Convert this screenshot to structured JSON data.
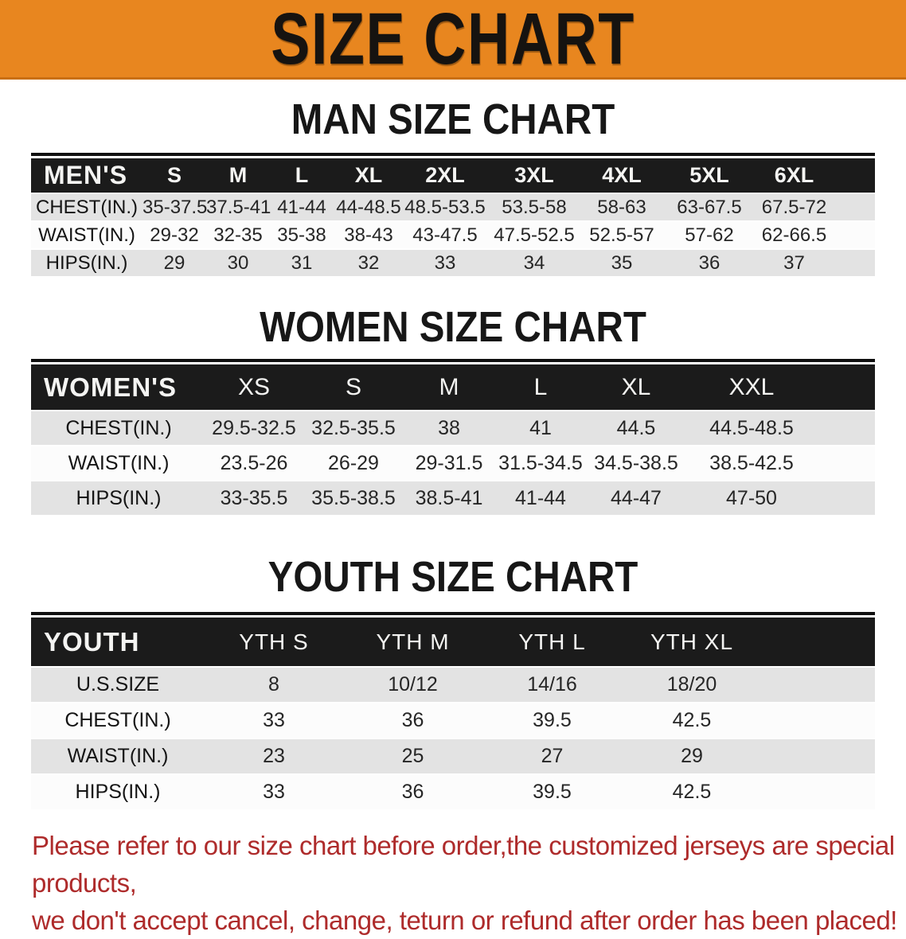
{
  "banner": {
    "title": "SIZE CHART",
    "bg_color": "#E8861F"
  },
  "sections": [
    {
      "heading": "MAN SIZE CHART",
      "table": {
        "group_label": "MEN'S",
        "columns": [
          "S",
          "M",
          "L",
          "XL",
          "2XL",
          "3XL",
          "4XL",
          "5XL",
          "6XL"
        ],
        "rows": [
          {
            "label": "CHEST(IN.)",
            "values": [
              "35-37.5",
              "37.5-41",
              "41-44",
              "44-48.5",
              "48.5-53.5",
              "53.5-58",
              "58-63",
              "63-67.5",
              "67.5-72"
            ]
          },
          {
            "label": "WAIST(IN.)",
            "values": [
              "29-32",
              "32-35",
              "35-38",
              "38-43",
              "43-47.5",
              "47.5-52.5",
              "52.5-57",
              "57-62",
              "62-66.5"
            ]
          },
          {
            "label": "HIPS(IN.)",
            "values": [
              "29",
              "30",
              "31",
              "32",
              "33",
              "34",
              "35",
              "36",
              "37"
            ]
          }
        ]
      }
    },
    {
      "heading": "WOMEN SIZE CHART",
      "table": {
        "group_label": "WOMEN'S",
        "columns": [
          "XS",
          "S",
          "M",
          "L",
          "XL",
          "XXL"
        ],
        "rows": [
          {
            "label": "CHEST(IN.)",
            "values": [
              "29.5-32.5",
              "32.5-35.5",
              "38",
              "41",
              "44.5",
              "44.5-48.5"
            ]
          },
          {
            "label": "WAIST(IN.)",
            "values": [
              "23.5-26",
              "26-29",
              "29-31.5",
              "31.5-34.5",
              "34.5-38.5",
              "38.5-42.5"
            ]
          },
          {
            "label": "HIPS(IN.)",
            "values": [
              "33-35.5",
              "35.5-38.5",
              "38.5-41",
              "41-44",
              "44-47",
              "47-50"
            ]
          }
        ]
      }
    },
    {
      "heading": "YOUTH SIZE CHART",
      "table": {
        "group_label": "YOUTH",
        "columns": [
          "YTH S",
          "YTH M",
          "YTH L",
          "YTH XL"
        ],
        "rows": [
          {
            "label": "U.S.SIZE",
            "values": [
              "8",
              "10/12",
              "14/16",
              "18/20"
            ]
          },
          {
            "label": "CHEST(IN.)",
            "values": [
              "33",
              "36",
              "39.5",
              "42.5"
            ]
          },
          {
            "label": "WAIST(IN.)",
            "values": [
              "23",
              "25",
              "27",
              "29"
            ]
          },
          {
            "label": "HIPS(IN.)",
            "values": [
              "33",
              "36",
              "39.5",
              "42.5"
            ]
          }
        ]
      }
    }
  ],
  "footer": {
    "line1": "Please refer to our size chart before order,the customized jerseys are special products,",
    "line2": "we don't accept cancel, change, teturn or refund after order has been placed!",
    "text_color": "#AE2B2B"
  }
}
